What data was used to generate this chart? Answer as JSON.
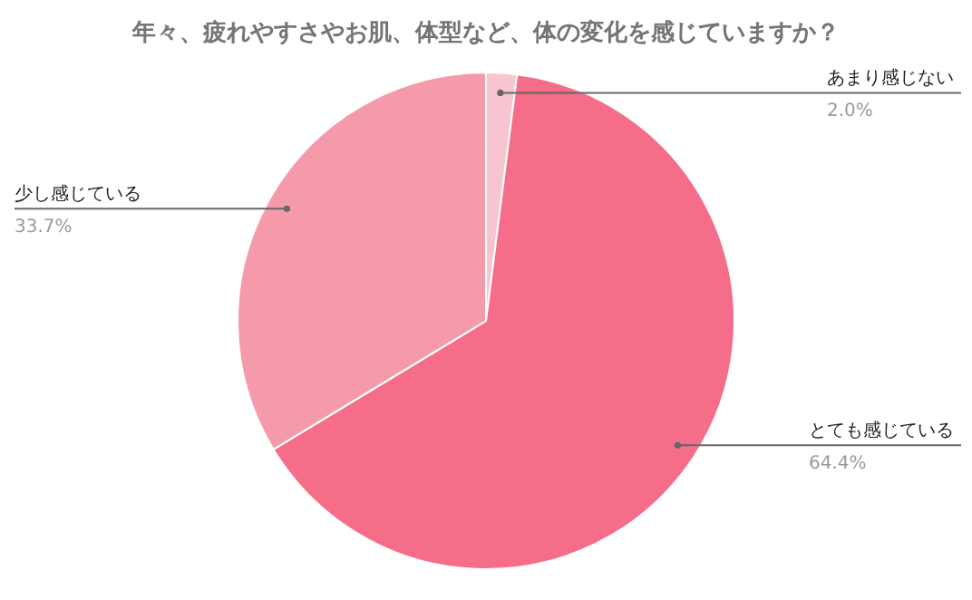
{
  "chart_data": {
    "type": "pie",
    "title": "年々、疲れやすさやお肌、体型など、体の変化を感じていますか？",
    "categories": [
      "あまり感じない",
      "とても感じている",
      "少し感じている"
    ],
    "values": [
      2.0,
      64.4,
      33.7
    ],
    "colors": [
      "#f7c5cf",
      "#f56d89",
      "#f59aaa"
    ],
    "value_labels": [
      "2.0%",
      "64.4%",
      "33.7%"
    ]
  }
}
